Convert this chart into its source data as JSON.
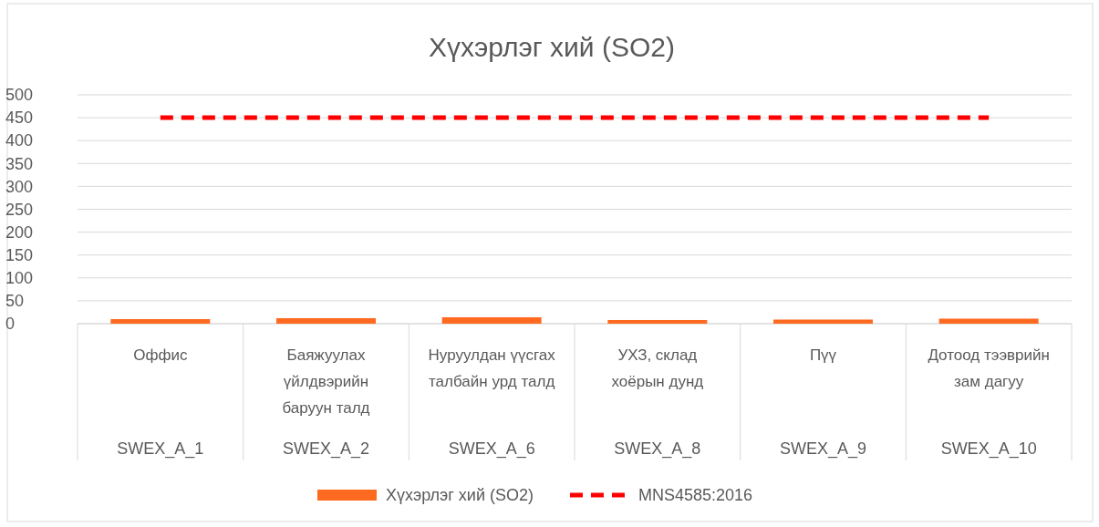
{
  "chart_data": {
    "type": "bar",
    "title": "Хүхэрлэг хий (SO2)",
    "categories": [
      "Оффис\nSWEX_A_1",
      "Баяжуулах үйлдвэрийн баруун талд\nSWEX_A_2",
      "Нуруулдан үүсгах талбайн урд талд\nSWEX_A_6",
      "УХЗ, склад хоёрын дунд\nSWEX_A_8",
      "Пүү\nSWEX_A_9",
      "Дотоод тээврийн зам дагуу\nSWEX_A_10"
    ],
    "series": [
      {
        "name": "Хүхэрлэг хий (SO2)",
        "color": "#ff6a21",
        "values": [
          10,
          12,
          14,
          8,
          9,
          11
        ]
      },
      {
        "name": "MNS4585:2016",
        "type": "line",
        "color": "#ff0000",
        "line_style": "dashed",
        "marker": "none",
        "values": [
          450,
          450,
          450,
          450,
          450,
          450
        ]
      }
    ],
    "ylim": [
      0,
      500
    ],
    "yticks": [
      0,
      50,
      100,
      150,
      200,
      250,
      300,
      350,
      400,
      450,
      500
    ],
    "grid": "y",
    "legend": "bottom"
  }
}
